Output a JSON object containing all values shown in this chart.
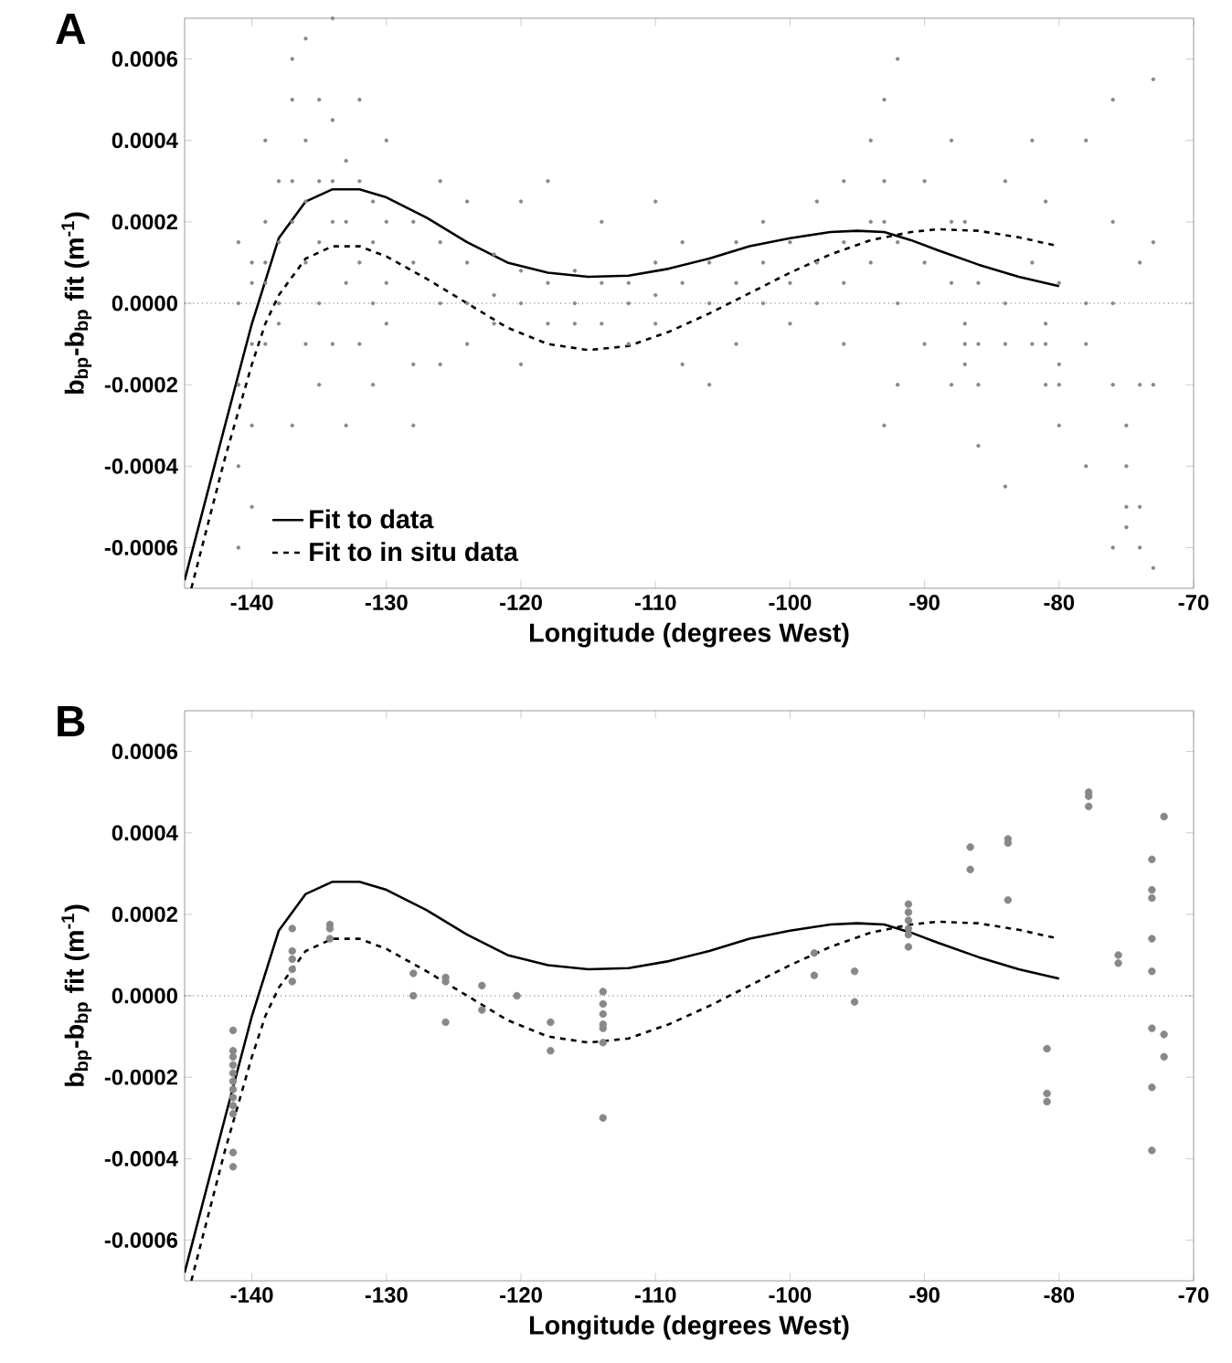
{
  "chart_data": [
    {
      "type": "scatter",
      "title": "A",
      "xlabel": "Longitude (degrees West)",
      "ylabel": "b$_{bp}$-b$_{bp}$ fit (m$^{-1}$)",
      "xlim": [
        -145,
        -70
      ],
      "ylim": [
        -0.0007,
        0.0007
      ],
      "xticks": [
        -140,
        -130,
        -120,
        -110,
        -100,
        -90,
        -80,
        -70
      ],
      "yticks": [
        {
          "value": -0.0006,
          "label": "-0.0006"
        },
        {
          "value": -0.0004,
          "label": "-0.0004"
        },
        {
          "value": -0.0002,
          "label": "-0.0002"
        },
        {
          "value": 0,
          "label": "0.0000"
        },
        {
          "value": 0.0002,
          "label": "0.0002"
        },
        {
          "value": 0.0004,
          "label": "0.0004"
        },
        {
          "value": 0.0006,
          "label": "0.0006"
        }
      ],
      "legend": "bottom left",
      "ref_lines": [
        {
          "axis": "y",
          "value": 0,
          "line_style": "dotted"
        }
      ],
      "series": [
        {
          "color": "#888888",
          "x": [
            -141,
            -141,
            -141,
            -141,
            -141,
            -140,
            -140,
            -140,
            -140,
            -140,
            -139,
            -139,
            -139,
            -139,
            -139,
            -138,
            -138,
            -138,
            -138,
            -137,
            -137,
            -137,
            -137,
            -137,
            -136,
            -136,
            -136,
            -136,
            -136,
            -135,
            -135,
            -135,
            -135,
            -135,
            -134,
            -134,
            -134,
            -134,
            -134,
            -133,
            -133,
            -133,
            -133,
            -132,
            -132,
            -132,
            -132,
            -131,
            -131,
            -131,
            -131,
            -130,
            -130,
            -130,
            -130,
            -128,
            -128,
            -128,
            -128,
            -126,
            -126,
            -126,
            -126,
            -124,
            -124,
            -124,
            -124,
            -122,
            -122,
            -122,
            -120,
            -120,
            -120,
            -120,
            -118,
            -118,
            -118,
            -116,
            -116,
            -116,
            -114,
            -114,
            -114,
            -112,
            -112,
            -112,
            -110,
            -110,
            -110,
            -110,
            -108,
            -108,
            -108,
            -106,
            -106,
            -106,
            -104,
            -104,
            -104,
            -102,
            -102,
            -102,
            -100,
            -100,
            -100,
            -98,
            -98,
            -98,
            -96,
            -96,
            -96,
            -96,
            -94,
            -94,
            -94,
            -93,
            -93,
            -93,
            -93,
            -92,
            -92,
            -92,
            -92,
            -90,
            -90,
            -90,
            -88,
            -88,
            -88,
            -88,
            -87,
            -87,
            -87,
            -87,
            -86,
            -86,
            -86,
            -86,
            -84,
            -84,
            -84,
            -84,
            -82,
            -82,
            -82,
            -81,
            -81,
            -81,
            -81,
            -80,
            -80,
            -80,
            -80,
            -78,
            -78,
            -78,
            -78,
            -76,
            -76,
            -76,
            -76,
            -76,
            -75,
            -75,
            -75,
            -75,
            -74,
            -74,
            -74,
            -74,
            -73,
            -73,
            -73,
            -73
          ],
          "values": [
            -0.0004,
            -0.0002,
            0,
            0.00015,
            -0.0006,
            -0.0003,
            -0.0001,
            0.0001,
            -0.0005,
            5e-05,
            0.0002,
            0.0001,
            -0.0001,
            5e-05,
            0.0004,
            0.00015,
            0.0003,
            0,
            -5e-05,
            0.0003,
            0.0002,
            0.0005,
            -0.0003,
            0.0006,
            0.0004,
            0.00025,
            0.0001,
            -0.0001,
            0.00065,
            0.0005,
            0.0003,
            0.00015,
            0,
            -0.0002,
            0.00045,
            0.0003,
            0.0002,
            -0.0001,
            0.0007,
            0.00035,
            0.0002,
            5e-05,
            -0.0003,
            0.0003,
            0.0001,
            -0.0001,
            0.0005,
            0.00025,
            0.00015,
            0,
            -0.0002,
            0.0002,
            5e-05,
            -5e-05,
            0.0004,
            0.0002,
            0.0001,
            -0.00015,
            -0.0003,
            0.00015,
            0,
            -0.00015,
            0.0003,
            0.0001,
            0,
            -0.0001,
            0.00025,
            0.00012,
            2e-05,
            -5e-05,
            8e-05,
            0,
            0.00025,
            -0.00015,
            5e-05,
            -5e-05,
            0.0003,
            8e-05,
            0,
            -5e-05,
            5e-05,
            -5e-05,
            0.0002,
            5e-05,
            -0.0001,
            0,
            0.0001,
            -5e-05,
            2e-05,
            0.00025,
            5e-05,
            -0.00015,
            0.00015,
            0.0001,
            0,
            -0.0002,
            0.00015,
            5e-05,
            -0.0001,
            0.0001,
            0,
            0.0002,
            5e-05,
            -5e-05,
            0.00015,
            0.0001,
            0,
            0.00025,
            0.00015,
            5e-05,
            0.0003,
            -0.0001,
            0.0002,
            0.0001,
            0.0004,
            0.0003,
            0.0002,
            0.0005,
            -0.0003,
            0.00015,
            0,
            -0.0002,
            0.0006,
            0.0001,
            -0.0001,
            0.0003,
            0.0002,
            5e-05,
            0.0004,
            -0.0002,
            -0.0001,
            -0.00015,
            -5e-05,
            0.0002,
            -0.0001,
            -0.0002,
            -0.00035,
            5e-05,
            0,
            -0.0001,
            0.0003,
            -0.00045,
            0.0001,
            -0.0001,
            0.0004,
            -0.0001,
            -0.0002,
            -5e-05,
            0.00025,
            -0.00015,
            -0.0003,
            5e-05,
            -0.0002,
            0,
            -0.0001,
            -0.0004,
            0.0004,
            0.0002,
            0,
            -0.0002,
            0.0005,
            -0.0006,
            -0.0004,
            -0.0005,
            -0.00055,
            -0.0003,
            -0.0005,
            -0.0006,
            -0.0002,
            0.0001,
            -0.0002,
            -0.00065,
            0.00015,
            0.00055
          ]
        },
        {
          "type": "line",
          "name": "Fit to data",
          "color": "#000000",
          "line_style": "solid",
          "x": [
            -145,
            -142,
            -140,
            -138,
            -136,
            -134,
            -132,
            -130,
            -127,
            -124,
            -121,
            -118,
            -115,
            -112,
            -109,
            -106,
            -103,
            -100,
            -97,
            -95,
            -93,
            -91,
            -89,
            -86,
            -83,
            -80
          ],
          "values": [
            -0.00068,
            -0.0003,
            -5e-05,
            0.00016,
            0.00025,
            0.00028,
            0.00028,
            0.00026,
            0.00021,
            0.00015,
            0.0001,
            7.5e-05,
            6.5e-05,
            6.8e-05,
            8.5e-05,
            0.00011,
            0.00014,
            0.00016,
            0.000175,
            0.000178,
            0.000175,
            0.000155,
            0.00013,
            9.5e-05,
            6.5e-05,
            4.2e-05
          ]
        },
        {
          "type": "line",
          "name": "Fit to in situ data",
          "color": "#000000",
          "line_style": "dashed",
          "x": [
            -144.5,
            -142,
            -140,
            -139,
            -138,
            -136,
            -134,
            -132,
            -130,
            -127,
            -124,
            -121,
            -118,
            -115,
            -112,
            -109,
            -106,
            -103,
            -100,
            -97,
            -94,
            -91,
            -89,
            -86,
            -83,
            -80
          ],
          "values": [
            -0.0007,
            -0.00038,
            -0.00015,
            -5e-05,
            2e-05,
            0.00011,
            0.00014,
            0.00014,
            0.000115,
            6e-05,
            0,
            -6e-05,
            -0.0001,
            -0.000115,
            -0.000105,
            -7e-05,
            -2.5e-05,
            2.5e-05,
            7.5e-05,
            0.00012,
            0.000155,
            0.000175,
            0.000182,
            0.000178,
            0.000162,
            0.00014
          ]
        }
      ]
    },
    {
      "type": "scatter",
      "title": "B",
      "xlabel": "Longitude (degrees West)",
      "ylabel": "b$_{bp}$-b$_{bp}$ fit (m$^{-1}$)",
      "xlim": [
        -145,
        -70
      ],
      "ylim": [
        -0.0007,
        0.0007
      ],
      "xticks": [
        -140,
        -130,
        -120,
        -110,
        -100,
        -90,
        -80,
        -70
      ],
      "yticks": [
        {
          "value": -0.0006,
          "label": "-0.0006"
        },
        {
          "value": -0.0004,
          "label": "-0.0004"
        },
        {
          "value": -0.0002,
          "label": "-0.0002"
        },
        {
          "value": 0,
          "label": "0.0000"
        },
        {
          "value": 0.0002,
          "label": "0.0002"
        },
        {
          "value": 0.0004,
          "label": "0.0004"
        },
        {
          "value": 0.0006,
          "label": "0.0006"
        }
      ],
      "ref_lines": [
        {
          "axis": "y",
          "value": 0,
          "line_style": "dotted"
        }
      ],
      "series": [
        {
          "color": "#888888",
          "x": [
            -141.4,
            -141.4,
            -141.4,
            -141.4,
            -141.4,
            -141.4,
            -141.4,
            -141.4,
            -141.4,
            -141.4,
            -141.4,
            -141.4,
            -137,
            -137,
            -137,
            -137,
            -137,
            -134.2,
            -134.2,
            -134.2,
            -128,
            -128,
            -125.6,
            -125.6,
            -125.6,
            -122.9,
            -122.9,
            -120.3,
            -117.8,
            -117.8,
            -113.9,
            -113.9,
            -113.9,
            -113.9,
            -113.9,
            -113.9,
            -113.9,
            -98.2,
            -98.2,
            -95.2,
            -95.2,
            -91.2,
            -91.2,
            -91.2,
            -91.2,
            -91.2,
            -91.2,
            -86.6,
            -86.6,
            -83.8,
            -83.8,
            -83.8,
            -80.9,
            -80.9,
            -80.9,
            -77.8,
            -77.8,
            -77.8,
            -75.6,
            -75.6,
            -73.1,
            -73.1,
            -73.1,
            -73.1,
            -73.1,
            -73.1,
            -73.1,
            -73.1,
            -72.2,
            -72.2,
            -72.2
          ],
          "values": [
            -8.5e-05,
            -0.000135,
            -0.00015,
            -0.00017,
            -0.00019,
            -0.00021,
            -0.00023,
            -0.00025,
            -0.00027,
            -0.00029,
            -0.000385,
            -0.00042,
            0.000165,
            0.00011,
            9e-05,
            6.5e-05,
            3.5e-05,
            0.000175,
            0.000165,
            0.00014,
            5.5e-05,
            0,
            4.5e-05,
            3.5e-05,
            -6.5e-05,
            2.5e-05,
            -3.5e-05,
            0,
            -6.5e-05,
            -0.000135,
            1e-05,
            -2e-05,
            -4.5e-05,
            -7e-05,
            -8e-05,
            -0.000115,
            -0.0003,
            0.000105,
            5e-05,
            6e-05,
            -1.5e-05,
            0.000225,
            0.000205,
            0.000185,
            0.000165,
            0.00015,
            0.00012,
            0.000365,
            0.00031,
            0.000385,
            0.000375,
            0.000235,
            -0.00013,
            -0.00024,
            -0.00026,
            0.0005,
            0.00049,
            0.000465,
            0.0001,
            8e-05,
            0.000335,
            0.00026,
            0.00024,
            0.00014,
            6e-05,
            -8e-05,
            -0.000225,
            -0.00038,
            0.00044,
            -9.5e-05,
            -0.00015
          ]
        },
        {
          "type": "line",
          "color": "#000000",
          "line_style": "solid",
          "x": [
            -145,
            -142,
            -140,
            -138,
            -136,
            -134,
            -132,
            -130,
            -127,
            -124,
            -121,
            -118,
            -115,
            -112,
            -109,
            -106,
            -103,
            -100,
            -97,
            -95,
            -93,
            -91,
            -89,
            -86,
            -83,
            -80
          ],
          "values": [
            -0.00068,
            -0.0003,
            -5e-05,
            0.00016,
            0.00025,
            0.00028,
            0.00028,
            0.00026,
            0.00021,
            0.00015,
            0.0001,
            7.5e-05,
            6.5e-05,
            6.8e-05,
            8.5e-05,
            0.00011,
            0.00014,
            0.00016,
            0.000175,
            0.000178,
            0.000175,
            0.000155,
            0.00013,
            9.5e-05,
            6.5e-05,
            4.2e-05
          ]
        },
        {
          "type": "line",
          "color": "#000000",
          "line_style": "dashed",
          "x": [
            -144.5,
            -142,
            -140,
            -139,
            -138,
            -136,
            -134,
            -132,
            -130,
            -127,
            -124,
            -121,
            -118,
            -115,
            -112,
            -109,
            -106,
            -103,
            -100,
            -97,
            -94,
            -91,
            -89,
            -86,
            -83,
            -80
          ],
          "values": [
            -0.0007,
            -0.00038,
            -0.00015,
            -5e-05,
            2e-05,
            0.00011,
            0.00014,
            0.00014,
            0.000115,
            6e-05,
            0,
            -6e-05,
            -0.0001,
            -0.000115,
            -0.000105,
            -7e-05,
            -2.5e-05,
            2.5e-05,
            7.5e-05,
            0.00012,
            0.000155,
            0.000175,
            0.000182,
            0.000178,
            0.000162,
            0.00014
          ]
        }
      ]
    }
  ]
}
